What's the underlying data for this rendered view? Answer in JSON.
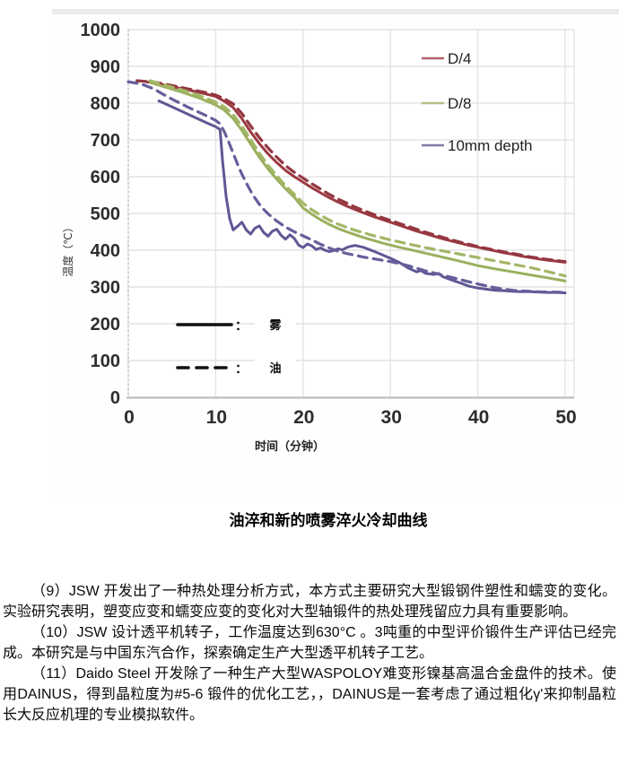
{
  "caption": "油淬和新的喷雾淬火冷却曲线",
  "paragraphs": [
    "（9）JSW 开发出了一种热处理分析方式，本方式主要研究大型锻钢件塑性和蠕变的变化。实验研究表明，塑变应变和蠕变应变的变化对大型轴锻件的热处理残留应力具有重要影响。",
    "（10）JSW 设计透平机转子，工作温度达到630°C 。3吨重的中型评价锻件生产评估已经完成。本研究是与中国东汽合作，探索确定生产大型透平机转子工艺。",
    "（11）Daido Steel 开发除了一种生产大型WASPOLOY难变形镍基高温合金盘件的技术。使用DAINUS，得到晶粒度为#5-6 锻件的优化工艺，，DAINUS是一套考虑了通过粗化γ'来抑制晶粒长大反应机理的专业模拟软件。"
  ],
  "chart_data": {
    "type": "line",
    "title": "",
    "xlabel": "时间（分钟）",
    "ylabel": "温度（℃）",
    "xlim": [
      0,
      50
    ],
    "ylim": [
      0,
      1000
    ],
    "xticks": [
      0,
      10,
      20,
      30,
      40,
      50
    ],
    "yticks": [
      0,
      100,
      200,
      300,
      400,
      500,
      600,
      700,
      800,
      900,
      1000
    ],
    "grid": true,
    "legend_position": "upper right",
    "series_legend": [
      {
        "label": "D/4",
        "color": "#a84550"
      },
      {
        "label": "D/8",
        "color": "#aab878"
      },
      {
        "label": "10mm depth",
        "color": "#6a6496"
      }
    ],
    "style_legend": [
      {
        "style": "solid",
        "label": "雾"
      },
      {
        "style": "dashed",
        "label": "油"
      }
    ],
    "series": [
      {
        "name": "D/4 雾",
        "group": "D/4",
        "medium": "雾",
        "style": "solid",
        "color": "#9c3a42",
        "points": [
          [
            2,
            858
          ],
          [
            4,
            850
          ],
          [
            6,
            840
          ],
          [
            8,
            830
          ],
          [
            10,
            818
          ],
          [
            11,
            805
          ],
          [
            12,
            788
          ],
          [
            13,
            758
          ],
          [
            14,
            722
          ],
          [
            15,
            690
          ],
          [
            16,
            662
          ],
          [
            17,
            638
          ],
          [
            18,
            617
          ],
          [
            19,
            600
          ],
          [
            20,
            585
          ],
          [
            21,
            570
          ],
          [
            22,
            556
          ],
          [
            23,
            543
          ],
          [
            24,
            531
          ],
          [
            25,
            520
          ],
          [
            26,
            510
          ],
          [
            27,
            501
          ],
          [
            28,
            492
          ],
          [
            29,
            484
          ],
          [
            30,
            476
          ],
          [
            31,
            468
          ],
          [
            32,
            460
          ],
          [
            33,
            452
          ],
          [
            34,
            445
          ],
          [
            35,
            438
          ],
          [
            36,
            431
          ],
          [
            37,
            425
          ],
          [
            38,
            419
          ],
          [
            39,
            413
          ],
          [
            40,
            408
          ],
          [
            41,
            403
          ],
          [
            42,
            398
          ],
          [
            43,
            393
          ],
          [
            44,
            389
          ],
          [
            45,
            384
          ],
          [
            46,
            380
          ],
          [
            47,
            376
          ],
          [
            48,
            373
          ],
          [
            49,
            370
          ],
          [
            50,
            367
          ]
        ]
      },
      {
        "name": "D/4 油",
        "group": "D/4",
        "medium": "油",
        "style": "dashed",
        "color": "#943741",
        "points": [
          [
            1,
            861
          ],
          [
            3,
            857
          ],
          [
            5,
            848
          ],
          [
            7,
            838
          ],
          [
            9,
            828
          ],
          [
            10,
            822
          ],
          [
            11,
            812
          ],
          [
            12,
            798
          ],
          [
            13,
            772
          ],
          [
            14,
            738
          ],
          [
            15,
            706
          ],
          [
            16,
            678
          ],
          [
            17,
            653
          ],
          [
            18,
            630
          ],
          [
            19,
            612
          ],
          [
            20,
            596
          ],
          [
            21,
            581
          ],
          [
            22,
            566
          ],
          [
            23,
            552
          ],
          [
            24,
            539
          ],
          [
            25,
            528
          ],
          [
            26,
            517
          ],
          [
            27,
            507
          ],
          [
            28,
            498
          ],
          [
            29,
            489
          ],
          [
            30,
            481
          ],
          [
            31,
            473
          ],
          [
            32,
            465
          ],
          [
            33,
            457
          ],
          [
            34,
            449
          ],
          [
            35,
            442
          ],
          [
            36,
            435
          ],
          [
            37,
            428
          ],
          [
            38,
            422
          ],
          [
            39,
            416
          ],
          [
            40,
            410
          ],
          [
            42,
            400
          ],
          [
            44,
            391
          ],
          [
            46,
            382
          ],
          [
            48,
            375
          ],
          [
            50,
            369
          ]
        ]
      },
      {
        "name": "D/8 雾",
        "group": "D/8",
        "medium": "雾",
        "style": "solid",
        "color": "#9ab05e",
        "points": [
          [
            2.5,
            856
          ],
          [
            4,
            845
          ],
          [
            6,
            831
          ],
          [
            8,
            815
          ],
          [
            10,
            795
          ],
          [
            11,
            781
          ],
          [
            12,
            758
          ],
          [
            13,
            726
          ],
          [
            14,
            689
          ],
          [
            15,
            653
          ],
          [
            16,
            621
          ],
          [
            17,
            593
          ],
          [
            18,
            567
          ],
          [
            19,
            544
          ],
          [
            20,
            515
          ],
          [
            21,
            498
          ],
          [
            22,
            483
          ],
          [
            23,
            470
          ],
          [
            24,
            459
          ],
          [
            25,
            450
          ],
          [
            26,
            442
          ],
          [
            27,
            434
          ],
          [
            28,
            427
          ],
          [
            29,
            420
          ],
          [
            30,
            414
          ],
          [
            31,
            408
          ],
          [
            32,
            403
          ],
          [
            34,
            392
          ],
          [
            36,
            381
          ],
          [
            38,
            370
          ],
          [
            40,
            358
          ],
          [
            42,
            349
          ],
          [
            44,
            341
          ],
          [
            46,
            333
          ],
          [
            48,
            325
          ],
          [
            50,
            316
          ]
        ]
      },
      {
        "name": "D/8 油",
        "group": "D/8",
        "medium": "油",
        "style": "dashed",
        "color": "#a3b766",
        "points": [
          [
            2.5,
            861
          ],
          [
            4,
            850
          ],
          [
            6,
            837
          ],
          [
            8,
            822
          ],
          [
            10,
            803
          ],
          [
            11,
            790
          ],
          [
            12,
            769
          ],
          [
            13,
            738
          ],
          [
            14,
            701
          ],
          [
            15,
            664
          ],
          [
            16,
            631
          ],
          [
            17,
            602
          ],
          [
            18,
            575
          ],
          [
            19,
            552
          ],
          [
            20,
            528
          ],
          [
            21,
            510
          ],
          [
            22,
            495
          ],
          [
            23,
            482
          ],
          [
            24,
            471
          ],
          [
            25,
            462
          ],
          [
            26,
            454
          ],
          [
            27,
            447
          ],
          [
            28,
            440
          ],
          [
            29,
            434
          ],
          [
            30,
            428
          ],
          [
            32,
            417
          ],
          [
            34,
            407
          ],
          [
            36,
            398
          ],
          [
            38,
            389
          ],
          [
            40,
            380
          ],
          [
            42,
            371
          ],
          [
            44,
            362
          ],
          [
            46,
            353
          ],
          [
            48,
            342
          ],
          [
            50,
            330
          ]
        ]
      },
      {
        "name": "10mm depth 雾",
        "group": "10mm depth",
        "medium": "雾",
        "style": "solid",
        "color": "#5e5894",
        "points": [
          [
            3.5,
            806
          ],
          [
            5,
            790
          ],
          [
            7,
            768
          ],
          [
            9,
            746
          ],
          [
            10,
            736
          ],
          [
            10.5,
            728
          ],
          [
            10.8,
            640
          ],
          [
            11.2,
            545
          ],
          [
            11.6,
            486
          ],
          [
            12,
            455
          ],
          [
            12.5,
            465
          ],
          [
            13,
            476
          ],
          [
            13.5,
            455
          ],
          [
            14,
            444
          ],
          [
            14.5,
            460
          ],
          [
            15,
            466
          ],
          [
            15.5,
            448
          ],
          [
            16,
            438
          ],
          [
            16.5,
            452
          ],
          [
            17,
            457
          ],
          [
            17.5,
            440
          ],
          [
            18,
            430
          ],
          [
            18.5,
            442
          ],
          [
            19,
            432
          ],
          [
            19.5,
            414
          ],
          [
            20,
            407
          ],
          [
            20.5,
            417
          ],
          [
            21,
            412
          ],
          [
            21.5,
            402
          ],
          [
            22,
            406
          ],
          [
            22.5,
            400
          ],
          [
            23,
            396
          ],
          [
            23.5,
            399
          ],
          [
            24,
            404
          ],
          [
            24.5,
            401
          ],
          [
            25,
            407
          ],
          [
            25.5,
            411
          ],
          [
            26,
            413
          ],
          [
            27,
            407
          ],
          [
            28,
            398
          ],
          [
            29,
            388
          ],
          [
            30,
            378
          ],
          [
            31,
            367
          ],
          [
            32,
            352
          ],
          [
            33,
            341
          ],
          [
            33.5,
            345
          ],
          [
            34,
            337
          ],
          [
            35,
            334
          ],
          [
            35.5,
            337
          ],
          [
            36,
            328
          ],
          [
            37,
            319
          ],
          [
            38,
            311
          ],
          [
            39,
            302
          ],
          [
            40,
            297
          ],
          [
            41,
            294
          ],
          [
            42,
            291
          ],
          [
            43,
            290
          ],
          [
            44,
            288
          ],
          [
            45,
            287
          ],
          [
            46,
            287
          ],
          [
            47,
            286
          ],
          [
            48,
            285
          ],
          [
            49,
            285
          ],
          [
            50,
            284
          ]
        ]
      },
      {
        "name": "10mm depth 油",
        "group": "10mm depth",
        "medium": "油",
        "style": "dashed",
        "color": "#655f9b",
        "points": [
          [
            0,
            858
          ],
          [
            1.5,
            852
          ],
          [
            3,
            838
          ],
          [
            4,
            824
          ],
          [
            5,
            811
          ],
          [
            6,
            799
          ],
          [
            7,
            787
          ],
          [
            8,
            776
          ],
          [
            9,
            765
          ],
          [
            10,
            753
          ],
          [
            10.5,
            744
          ],
          [
            11,
            722
          ],
          [
            11.5,
            694
          ],
          [
            12,
            664
          ],
          [
            12.5,
            634
          ],
          [
            13,
            607
          ],
          [
            13.5,
            583
          ],
          [
            14,
            561
          ],
          [
            14.5,
            542
          ],
          [
            15,
            525
          ],
          [
            15.5,
            511
          ],
          [
            16,
            499
          ],
          [
            17,
            479
          ],
          [
            18,
            463
          ],
          [
            19,
            450
          ],
          [
            20,
            439
          ],
          [
            21,
            428
          ],
          [
            22,
            416
          ],
          [
            23,
            406
          ],
          [
            24,
            397
          ],
          [
            25,
            391
          ],
          [
            26,
            386
          ],
          [
            27,
            381
          ],
          [
            28,
            377
          ],
          [
            29,
            373
          ],
          [
            30,
            369
          ],
          [
            31,
            364
          ],
          [
            32,
            358
          ],
          [
            33,
            351
          ],
          [
            34,
            344
          ],
          [
            35,
            338
          ],
          [
            36,
            332
          ],
          [
            37,
            326
          ],
          [
            38,
            320
          ],
          [
            39,
            314
          ],
          [
            40,
            308
          ],
          [
            41,
            303
          ],
          [
            42,
            298
          ],
          [
            43,
            294
          ],
          [
            44,
            291
          ],
          [
            45,
            289
          ],
          [
            46,
            288
          ],
          [
            47,
            287
          ],
          [
            48,
            286
          ],
          [
            49,
            286
          ],
          [
            50,
            285
          ]
        ]
      }
    ]
  }
}
